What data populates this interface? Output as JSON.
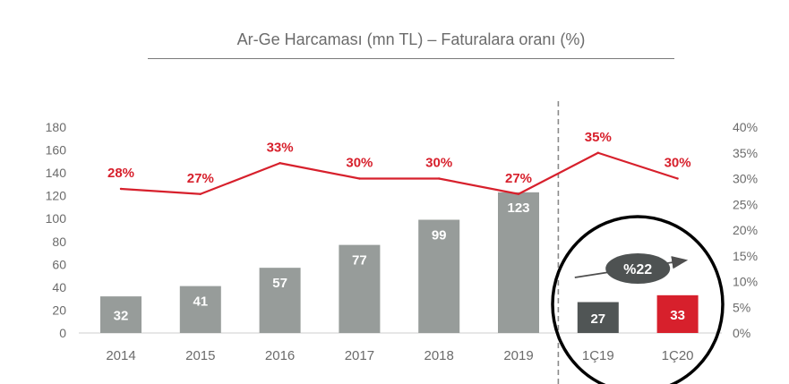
{
  "chart_data": {
    "type": "bar",
    "title": "Ar-Ge Harcaması (mn TL) – Faturalara oranı (%)",
    "categories": [
      "2014",
      "2015",
      "2016",
      "2017",
      "2018",
      "2019",
      "1Ç19",
      "1Ç20"
    ],
    "series": [
      {
        "type": "bar",
        "axis": "left",
        "values": [
          32,
          41,
          57,
          77,
          99,
          123,
          27,
          33
        ],
        "colors": [
          "#979c9a",
          "#979c9a",
          "#979c9a",
          "#979c9a",
          "#979c9a",
          "#979c9a",
          "#505555",
          "#d7202c"
        ]
      },
      {
        "type": "line",
        "axis": "right",
        "values": [
          28,
          27,
          33,
          30,
          30,
          27,
          35,
          30
        ],
        "labels": [
          "28%",
          "27%",
          "33%",
          "30%",
          "30%",
          "27%",
          "35%",
          "30%"
        ],
        "color": "#d7202c"
      }
    ],
    "y_left": {
      "min": 0,
      "max": 180,
      "ticks": [
        0,
        20,
        40,
        60,
        80,
        100,
        120,
        140,
        160,
        180
      ]
    },
    "y_right": {
      "min": 0,
      "max": 40,
      "ticks": [
        0,
        5,
        10,
        15,
        20,
        25,
        30,
        35,
        40
      ],
      "tick_labels": [
        "0%",
        "5%",
        "10%",
        "15%",
        "20%",
        "25%",
        "30%",
        "35%",
        "40%"
      ]
    },
    "divider_after_category": "2019",
    "annotation": {
      "label": "%22",
      "from_category": "1Ç19",
      "to_category": "1Ç20"
    },
    "grid": false
  }
}
